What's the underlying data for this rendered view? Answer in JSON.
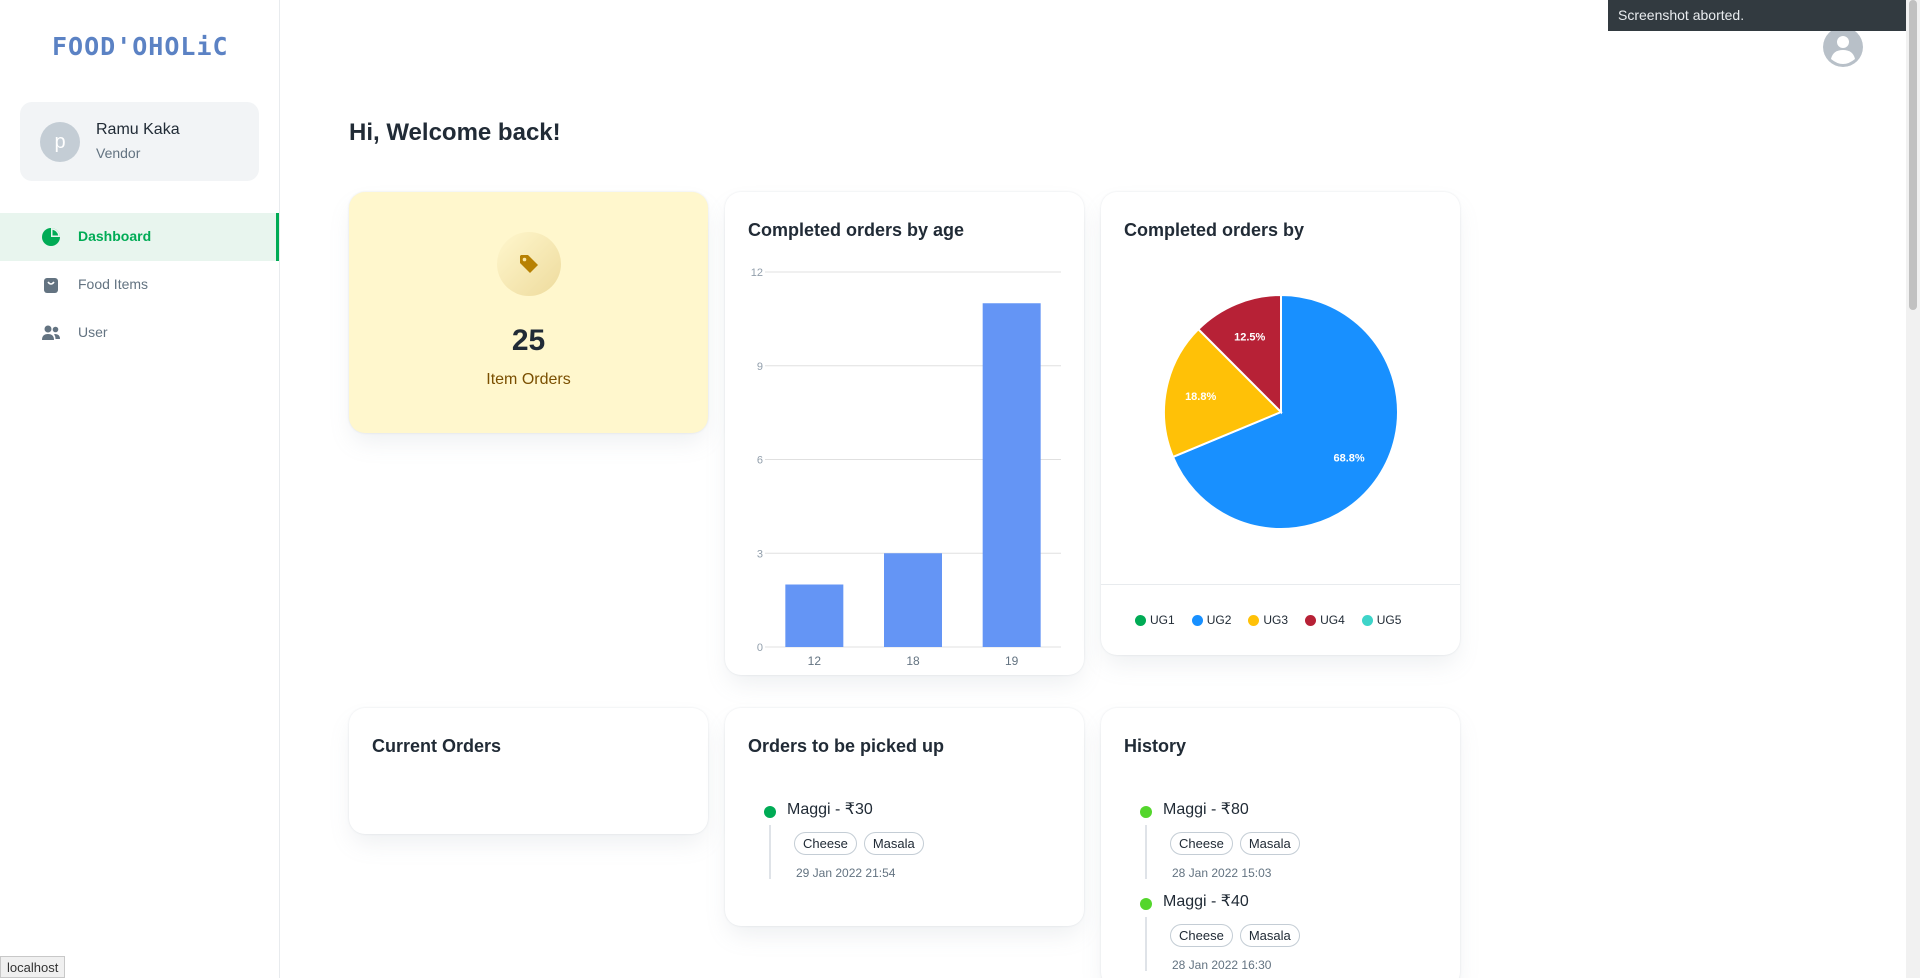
{
  "app": {
    "logo": "FOOD'OHOLiC"
  },
  "account": {
    "avatar_letter": "p",
    "name": "Ramu Kaka",
    "role": "Vendor"
  },
  "nav": [
    {
      "label": "Dashboard",
      "icon": "pie-chart-icon",
      "active": true
    },
    {
      "label": "Food Items",
      "icon": "shopping-bag-icon",
      "active": false
    },
    {
      "label": "User",
      "icon": "people-icon",
      "active": false
    }
  ],
  "welcome": "Hi, Welcome back!",
  "stat": {
    "value": "25",
    "label": "Item Orders",
    "icon": "tag-icon"
  },
  "bar_chart": {
    "title": "Completed orders by age",
    "chart_data": {
      "type": "bar",
      "categories": [
        "12",
        "18",
        "19"
      ],
      "values": [
        2,
        3,
        11
      ],
      "ylim": [
        0,
        12
      ],
      "yticks": [
        "0",
        "3",
        "6",
        "9",
        "12"
      ],
      "color": "#6495f5"
    }
  },
  "pie_chart": {
    "title": "Completed orders by",
    "chart_data": {
      "type": "pie",
      "labels": [
        "UG1",
        "UG2",
        "UG3",
        "UG4",
        "UG5"
      ],
      "values": [
        0,
        68.8,
        18.8,
        12.5,
        0
      ],
      "value_labels": [
        "",
        "68.8%",
        "18.8%",
        "12.5%",
        ""
      ],
      "colors": [
        "#00ab55",
        "#1890ff",
        "#ffc107",
        "#b72136",
        "#3ed4c9"
      ]
    }
  },
  "current_orders": {
    "title": "Current Orders"
  },
  "pickup": {
    "title": "Orders to be picked up",
    "orders": [
      {
        "title": "Maggi - ₹30",
        "tags": [
          "Cheese",
          "Masala"
        ],
        "time": "29 Jan 2022 21:54",
        "dot": "#00ab55"
      }
    ]
  },
  "history": {
    "title": "History",
    "orders": [
      {
        "title": "Maggi - ₹80",
        "tags": [
          "Cheese",
          "Masala"
        ],
        "time": "28 Jan 2022 15:03",
        "dot": "#54d62c"
      },
      {
        "title": "Maggi - ₹40",
        "tags": [
          "Cheese",
          "Masala"
        ],
        "time": "28 Jan 2022 16:30",
        "dot": "#54d62c"
      }
    ]
  },
  "toast": "Screenshot aborted.",
  "status_url": "localhost"
}
